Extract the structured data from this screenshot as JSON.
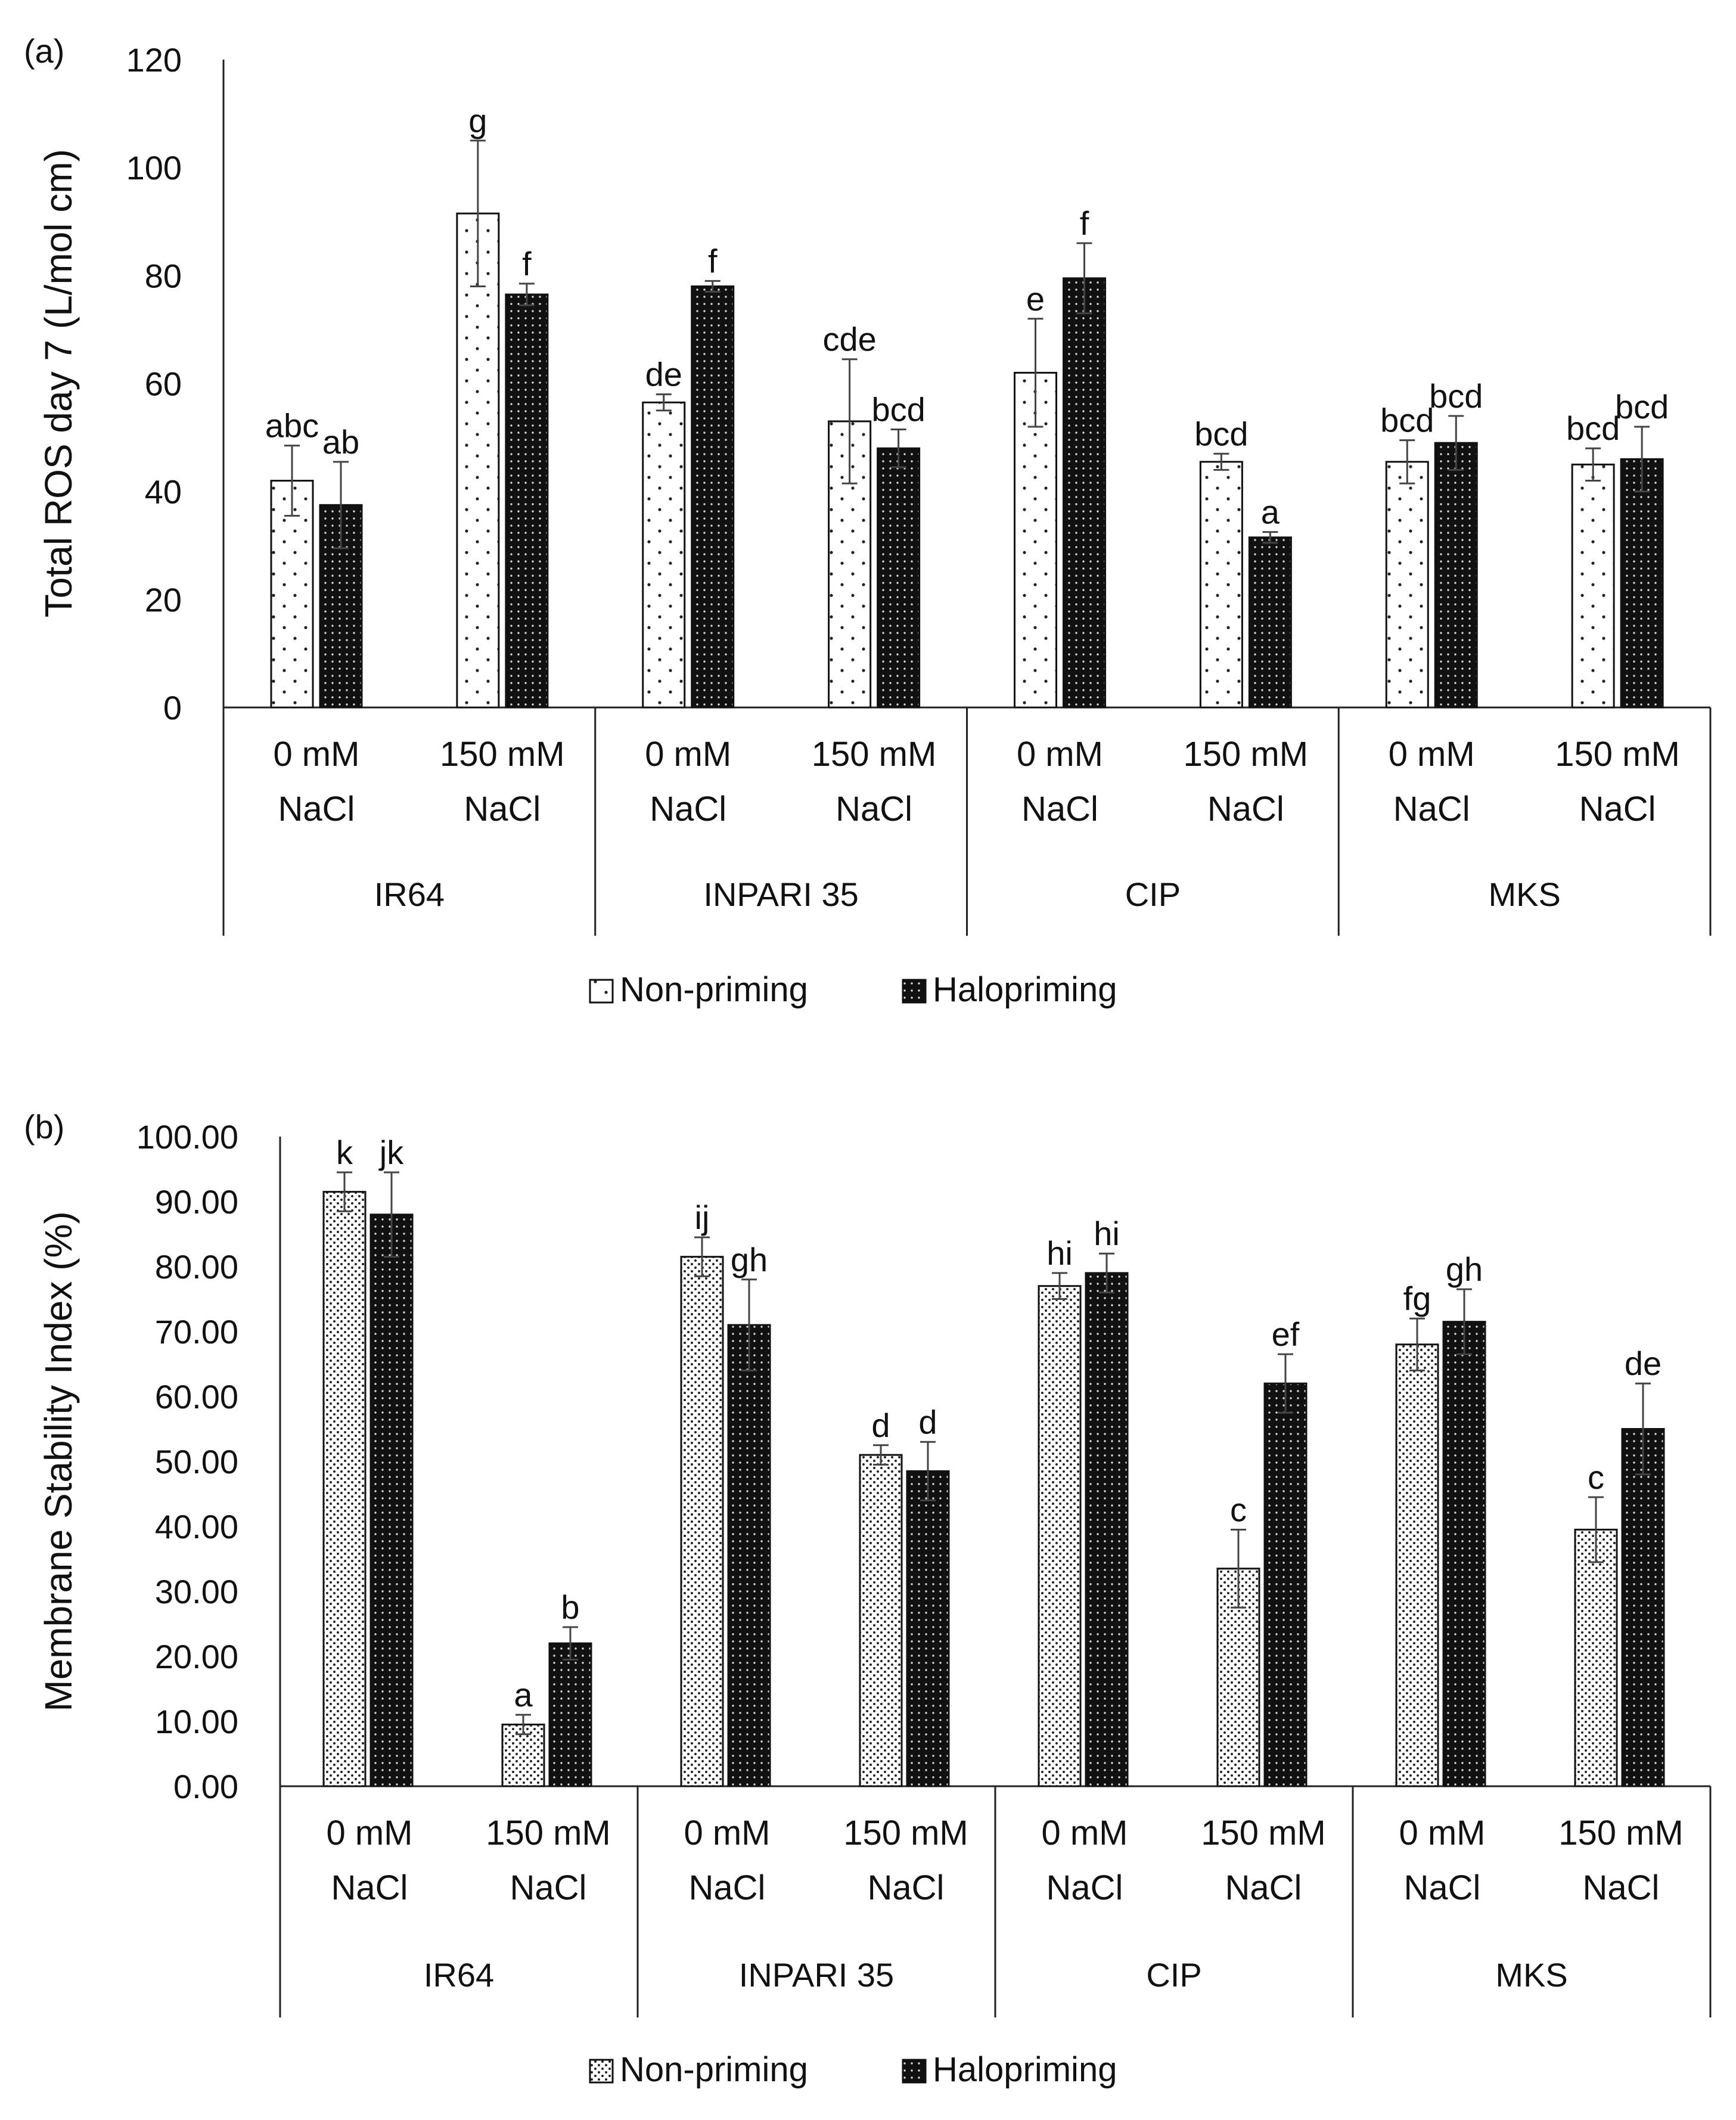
{
  "chart_data": [
    {
      "panel_label": "(a)",
      "type": "bar",
      "ylabel": "Total ROS day 7 (L/mol cm)",
      "ylim": [
        0,
        120
      ],
      "y_ticks": [
        "0",
        "20",
        "40",
        "60",
        "80",
        "100",
        "120"
      ],
      "groups": [
        "IR64",
        "INPARI 35",
        "CIP",
        "MKS"
      ],
      "categories": [
        "0 mM NaCl",
        "150 mM NaCl",
        "0 mM NaCl",
        "150 mM NaCl",
        "0 mM NaCl",
        "150 mM NaCl",
        "0 mM NaCl",
        "150 mM NaCl"
      ],
      "series": [
        {
          "name": "Non-priming",
          "values": [
            42,
            91.5,
            56.5,
            53,
            62,
            45.5,
            45.5,
            45
          ],
          "errors": [
            6.5,
            13.5,
            1.5,
            11.5,
            10,
            1.5,
            4,
            3
          ],
          "letters": [
            "abc",
            "g",
            "de",
            "cde",
            "e",
            "bcd",
            "bcd",
            "bcd"
          ]
        },
        {
          "name": "Halopriming",
          "values": [
            37.5,
            76.5,
            78,
            48,
            79.5,
            31.5,
            49,
            46
          ],
          "errors": [
            8,
            2,
            1,
            3.5,
            6.5,
            1,
            5,
            6
          ],
          "letters": [
            "ab",
            "f",
            "f",
            "bcd",
            "f",
            "a",
            "bcd",
            "bcd"
          ]
        }
      ],
      "legend": [
        "Non-priming",
        "Halopriming"
      ],
      "legend_position": "bottom"
    },
    {
      "panel_label": "(b)",
      "type": "bar",
      "ylabel": "Membrane Stability Index (%)",
      "ylim": [
        0,
        100
      ],
      "y_ticks": [
        "0.00",
        "10.00",
        "20.00",
        "30.00",
        "40.00",
        "50.00",
        "60.00",
        "70.00",
        "80.00",
        "90.00",
        "100.00"
      ],
      "groups": [
        "IR64",
        "INPARI 35",
        "CIP",
        "MKS"
      ],
      "categories": [
        "0 mM NaCl",
        "150 mM NaCl",
        "0 mM NaCl",
        "150 mM NaCl",
        "0 mM NaCl",
        "150 mM NaCl",
        "0 mM NaCl",
        "150 mM NaCl"
      ],
      "series": [
        {
          "name": "Non-priming",
          "values": [
            91.5,
            9.5,
            81.5,
            51,
            77,
            33.5,
            68,
            39.5
          ],
          "errors": [
            3,
            1.5,
            3,
            1.5,
            2,
            6,
            4,
            5
          ],
          "letters": [
            "k",
            "a",
            "ij",
            "d",
            "hi",
            "c",
            "fg",
            "c"
          ]
        },
        {
          "name": "Halopriming",
          "values": [
            88,
            22,
            71,
            48.5,
            79,
            62,
            71.5,
            55
          ],
          "errors": [
            6.5,
            2.5,
            7,
            4.5,
            3,
            4.5,
            5,
            7
          ],
          "letters": [
            "jk",
            "b",
            "gh",
            "d",
            "hi",
            "ef",
            "gh",
            "de"
          ]
        }
      ],
      "legend": [
        "Non-priming",
        "Halopriming"
      ],
      "legend_position": "bottom"
    }
  ]
}
